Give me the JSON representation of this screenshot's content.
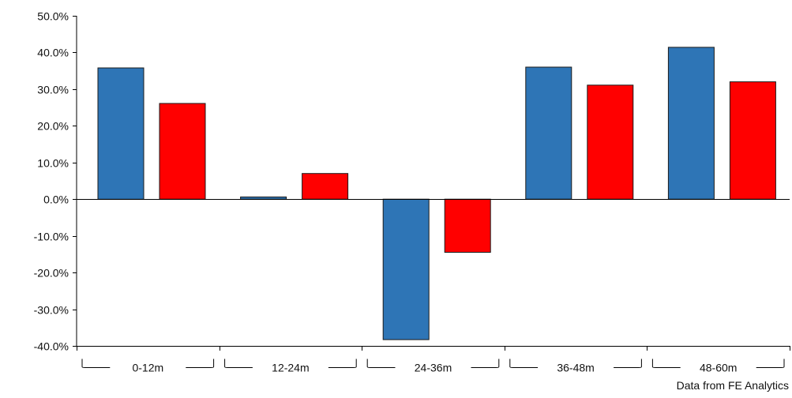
{
  "chart_data": {
    "type": "bar",
    "categories": [
      "0-12m",
      "12-24m",
      "24-36m",
      "36-48m",
      "48-60m"
    ],
    "series": [
      {
        "values": [
          35.8,
          0.6,
          -38.3,
          36.0,
          41.4
        ],
        "color": "#2e75b6"
      },
      {
        "values": [
          26.1,
          7.0,
          -14.5,
          31.1,
          32.0
        ],
        "color": "#ff0000"
      }
    ],
    "ylim": [
      -40,
      50
    ],
    "y_ticks": [
      "50.0%",
      "40.0%",
      "30.0%",
      "20.0%",
      "10.0%",
      "0.0%",
      "-10.0%",
      "-20.0%",
      "-30.0%",
      "-40.0%"
    ],
    "y_tick_values": [
      50,
      40,
      30,
      20,
      10,
      0,
      -10,
      -20,
      -30,
      -40
    ],
    "grid": false,
    "legend": "none"
  },
  "source_note": "Data from FE Analytics"
}
